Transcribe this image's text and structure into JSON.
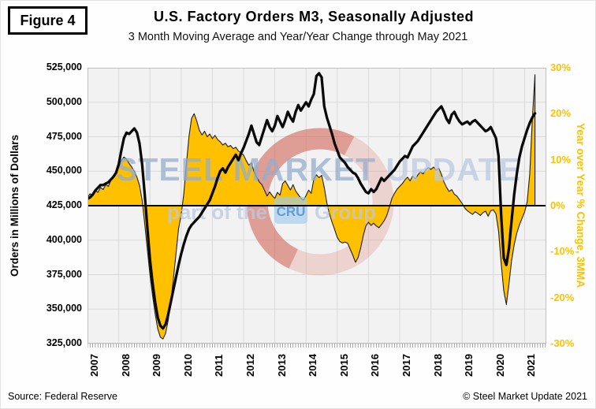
{
  "figure_label": "Figure 4",
  "title": "U.S. Factory Orders M3, Seasonally Adjusted",
  "subtitle": "3 Month Moving Average and Year/Year Change through May 2021",
  "source": "Source: Federal Reserve",
  "copyright": "© Steel Market Update 2021",
  "watermark": {
    "brand_strong": "STEEL MARKET",
    "brand_light": " UPDATE",
    "tagline_pre": "part of the",
    "tagline_box": "CRU",
    "tagline_post": "Group"
  },
  "colors": {
    "area_fill": "#FFC000",
    "area_outline": "#1f1f1f",
    "line": "#0a0a0a",
    "right_axis_text": "#FFC000",
    "plot_bg": "#f2f2f2",
    "grid": "#d9d9d9",
    "plot_border": "#bfbfbf",
    "axis_ticks": "#7f7f7f",
    "watermark_blue_strong": "rgba(148,173,205,0.75)",
    "watermark_blue_light": "rgba(186,202,224,0.75)",
    "watermark_ring_light": "rgba(226,132,118,0.28)",
    "watermark_ring_dark": "rgba(200,72,56,0.38)",
    "cru_box_fill": "rgba(158,203,238,0.65)",
    "cru_box_text": "rgba(80,140,200,0.8)"
  },
  "chart_data": {
    "type": "line+area",
    "x_start": "2007-01",
    "x_end": "2021-05",
    "x_tick_labels": [
      "2007",
      "2008",
      "2009",
      "2010",
      "2011",
      "2012",
      "2013",
      "2014",
      "2015",
      "2016",
      "2017",
      "2018",
      "2019",
      "2020",
      "2021"
    ],
    "left_axis": {
      "label": "Orders in Millions of Dollars",
      "min": 325000,
      "max": 525000,
      "tick_step": 25000,
      "tick_labels": [
        "525,000",
        "500,000",
        "475,000",
        "450,000",
        "425,000",
        "400,000",
        "375,000",
        "350,000",
        "325,000"
      ]
    },
    "right_axis": {
      "label": "Year over Year % Change, 3MMA",
      "min": -30,
      "max": 30,
      "tick_step": 10,
      "tick_labels": [
        "30%",
        "20%",
        "10%",
        "0%",
        "-10%",
        "-20%",
        "-30%"
      ]
    },
    "grid": true,
    "legend": "none",
    "series": [
      {
        "name": "Factory Orders, 3 Month Moving Average (Millions of Dollars)",
        "axis": "left",
        "style": "line",
        "values": [
          430000,
          431000,
          433000,
          436000,
          438000,
          440000,
          440000,
          441000,
          442000,
          444000,
          446000,
          449000,
          455000,
          465000,
          474000,
          478000,
          477000,
          479000,
          481000,
          478000,
          470000,
          455000,
          433000,
          409000,
          386000,
          369000,
          355000,
          344000,
          338000,
          336000,
          339000,
          346000,
          355000,
          364000,
          373000,
          382000,
          390000,
          397000,
          403000,
          408000,
          411000,
          413000,
          415000,
          417000,
          420000,
          423000,
          426000,
          429000,
          434000,
          439000,
          445000,
          450000,
          452000,
          449000,
          453000,
          456000,
          459000,
          462000,
          458000,
          463000,
          467000,
          472000,
          477000,
          483000,
          477000,
          471000,
          469000,
          475000,
          481000,
          487000,
          482000,
          479000,
          483000,
          490000,
          486000,
          482000,
          487000,
          493000,
          489000,
          486000,
          493000,
          498000,
          494000,
          497000,
          500000,
          497000,
          502000,
          506000,
          519000,
          521000,
          518000,
          497000,
          489000,
          483000,
          477000,
          470000,
          465000,
          460000,
          458000,
          456000,
          453000,
          451000,
          449000,
          448000,
          445000,
          441000,
          438000,
          435000,
          434000,
          437000,
          435000,
          437000,
          441000,
          445000,
          443000,
          445000,
          447000,
          449000,
          451000,
          454000,
          457000,
          459000,
          461000,
          460000,
          464000,
          468000,
          470000,
          472000,
          475000,
          478000,
          481000,
          484000,
          487000,
          490000,
          493000,
          495000,
          497000,
          493000,
          488000,
          485000,
          491000,
          493000,
          489000,
          486000,
          484000,
          485000,
          486000,
          484000,
          486000,
          487000,
          485000,
          483000,
          481000,
          479000,
          480000,
          482000,
          478000,
          474000,
          461000,
          418000,
          387000,
          382000,
          394000,
          414000,
          433000,
          448000,
          460000,
          468000,
          474000,
          480000,
          485000,
          489000,
          492000
        ]
      },
      {
        "name": "Year over Year % Change, 3MMA",
        "axis": "right",
        "style": "area",
        "values": [
          1.8,
          2.6,
          2.2,
          3.3,
          2.9,
          4.0,
          3.5,
          4.6,
          4.2,
          5.5,
          6.3,
          7.0,
          8.4,
          9.8,
          10.6,
          10.1,
          9.2,
          8.4,
          7.5,
          6.2,
          4.4,
          1.2,
          -4.0,
          -9.5,
          -15.0,
          -19.5,
          -23.5,
          -26.8,
          -28.6,
          -29.0,
          -27.8,
          -25.0,
          -21.0,
          -16.0,
          -10.5,
          -5.0,
          -2.0,
          2.5,
          9.0,
          15.0,
          19.0,
          20.0,
          18.4,
          16.4,
          15.4,
          16.2,
          15.0,
          15.6,
          14.6,
          15.3,
          14.4,
          13.9,
          13.2,
          13.6,
          12.8,
          13.1,
          12.4,
          12.7,
          11.9,
          11.5,
          11.0,
          9.8,
          8.8,
          9.3,
          7.4,
          6.2,
          5.2,
          4.6,
          3.4,
          2.1,
          3.0,
          2.2,
          1.6,
          2.9,
          2.3,
          4.8,
          5.4,
          4.4,
          3.4,
          4.6,
          3.2,
          2.4,
          1.7,
          1.2,
          2.2,
          3.4,
          2.7,
          5.8,
          6.7,
          6.1,
          6.6,
          4.0,
          0.6,
          -1.8,
          -3.6,
          -5.2,
          -6.9,
          -7.8,
          -8.1,
          -7.9,
          -8.2,
          -9.5,
          -10.8,
          -12.3,
          -11.3,
          -9.2,
          -6.5,
          -4.4,
          -3.6,
          -4.3,
          -3.8,
          -4.4,
          -4.8,
          -4.1,
          -3.3,
          -2.2,
          -0.4,
          1.6,
          2.7,
          3.6,
          4.2,
          4.8,
          5.6,
          6.2,
          5.4,
          6.5,
          5.8,
          6.7,
          7.4,
          6.9,
          7.8,
          8.3,
          7.9,
          8.4,
          7.7,
          8.2,
          6.9,
          5.2,
          4.0,
          3.1,
          3.5,
          2.5,
          2.1,
          1.3,
          0.5,
          -0.5,
          -1.1,
          -1.5,
          -1.9,
          -1.3,
          -1.7,
          -2.1,
          -1.5,
          -1.2,
          -2.3,
          -1.1,
          -0.9,
          -1.8,
          -5.5,
          -12.5,
          -18.5,
          -21.5,
          -17.0,
          -12.0,
          -8.5,
          -6.0,
          -4.2,
          -2.8,
          -1.4,
          0.8,
          7.0,
          19.0,
          28.5
        ]
      }
    ]
  }
}
